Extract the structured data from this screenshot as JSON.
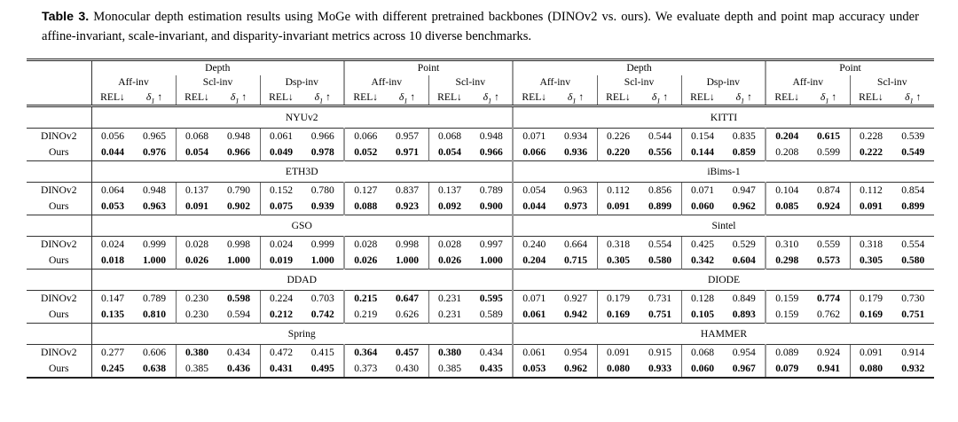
{
  "caption": {
    "label": "Table 3.",
    "text": "Monocular depth estimation results using MoGe with different pretrained backbones (DINOv2 vs. ours). We evaluate depth and point map accuracy under affine-invariant, scale-invariant, and disparity-invariant metrics across 10 diverse benchmarks."
  },
  "chart_data": {
    "type": "table",
    "title": "Monocular depth estimation results using MoGe with different pretrained backbones",
    "column_groups": [
      "Depth",
      "Point"
    ],
    "column_subgroups": [
      "Aff-inv",
      "Scl-inv",
      "Dsp-inv",
      "Aff-inv",
      "Scl-inv"
    ],
    "metrics_per_subgroup": [
      "REL↓",
      "δ1 ↑"
    ]
  },
  "table": {
    "groups": [
      "Depth",
      "Point"
    ],
    "subgroups": [
      "Aff-inv",
      "Scl-inv",
      "Dsp-inv",
      "Aff-inv",
      "Scl-inv"
    ],
    "metrics": {
      "rel": "REL",
      "rel_arrow": "↓",
      "delta": "δ",
      "delta_sub": "1",
      "delta_arrow": "↑"
    },
    "sections": [
      {
        "left": {
          "benchmark": "NYUv2",
          "rows": [
            {
              "label": "DINOv2",
              "values": [
                "0.056",
                "0.965",
                "0.068",
                "0.948",
                "0.061",
                "0.966",
                "0.066",
                "0.957",
                "0.068",
                "0.948"
              ],
              "bold": [
                0,
                0,
                0,
                0,
                0,
                0,
                0,
                0,
                0,
                0
              ]
            },
            {
              "label": "Ours",
              "values": [
                "0.044",
                "0.976",
                "0.054",
                "0.966",
                "0.049",
                "0.978",
                "0.052",
                "0.971",
                "0.054",
                "0.966"
              ],
              "bold": [
                1,
                1,
                1,
                1,
                1,
                1,
                1,
                1,
                1,
                1
              ]
            }
          ]
        },
        "right": {
          "benchmark": "KITTI",
          "rows": [
            {
              "label": "DINOv2",
              "values": [
                "0.071",
                "0.934",
                "0.226",
                "0.544",
                "0.154",
                "0.835",
                "0.204",
                "0.615",
                "0.228",
                "0.539"
              ],
              "bold": [
                0,
                0,
                0,
                0,
                0,
                0,
                1,
                1,
                0,
                0
              ]
            },
            {
              "label": "Ours",
              "values": [
                "0.066",
                "0.936",
                "0.220",
                "0.556",
                "0.144",
                "0.859",
                "0.208",
                "0.599",
                "0.222",
                "0.549"
              ],
              "bold": [
                1,
                1,
                1,
                1,
                1,
                1,
                0,
                0,
                1,
                1
              ]
            }
          ]
        }
      },
      {
        "left": {
          "benchmark": "ETH3D",
          "rows": [
            {
              "label": "DINOv2",
              "values": [
                "0.064",
                "0.948",
                "0.137",
                "0.790",
                "0.152",
                "0.780",
                "0.127",
                "0.837",
                "0.137",
                "0.789"
              ],
              "bold": [
                0,
                0,
                0,
                0,
                0,
                0,
                0,
                0,
                0,
                0
              ]
            },
            {
              "label": "Ours",
              "values": [
                "0.053",
                "0.963",
                "0.091",
                "0.902",
                "0.075",
                "0.939",
                "0.088",
                "0.923",
                "0.092",
                "0.900"
              ],
              "bold": [
                1,
                1,
                1,
                1,
                1,
                1,
                1,
                1,
                1,
                1
              ]
            }
          ]
        },
        "right": {
          "benchmark": "iBims-1",
          "rows": [
            {
              "label": "DINOv2",
              "values": [
                "0.054",
                "0.963",
                "0.112",
                "0.856",
                "0.071",
                "0.947",
                "0.104",
                "0.874",
                "0.112",
                "0.854"
              ],
              "bold": [
                0,
                0,
                0,
                0,
                0,
                0,
                0,
                0,
                0,
                0
              ]
            },
            {
              "label": "Ours",
              "values": [
                "0.044",
                "0.973",
                "0.091",
                "0.899",
                "0.060",
                "0.962",
                "0.085",
                "0.924",
                "0.091",
                "0.899"
              ],
              "bold": [
                1,
                1,
                1,
                1,
                1,
                1,
                1,
                1,
                1,
                1
              ]
            }
          ]
        }
      },
      {
        "left": {
          "benchmark": "GSO",
          "rows": [
            {
              "label": "DINOv2",
              "values": [
                "0.024",
                "0.999",
                "0.028",
                "0.998",
                "0.024",
                "0.999",
                "0.028",
                "0.998",
                "0.028",
                "0.997"
              ],
              "bold": [
                0,
                0,
                0,
                0,
                0,
                0,
                0,
                0,
                0,
                0
              ]
            },
            {
              "label": "Ours",
              "values": [
                "0.018",
                "1.000",
                "0.026",
                "1.000",
                "0.019",
                "1.000",
                "0.026",
                "1.000",
                "0.026",
                "1.000"
              ],
              "bold": [
                1,
                1,
                1,
                1,
                1,
                1,
                1,
                1,
                1,
                1
              ]
            }
          ]
        },
        "right": {
          "benchmark": "Sintel",
          "rows": [
            {
              "label": "DINOv2",
              "values": [
                "0.240",
                "0.664",
                "0.318",
                "0.554",
                "0.425",
                "0.529",
                "0.310",
                "0.559",
                "0.318",
                "0.554"
              ],
              "bold": [
                0,
                0,
                0,
                0,
                0,
                0,
                0,
                0,
                0,
                0
              ]
            },
            {
              "label": "Ours",
              "values": [
                "0.204",
                "0.715",
                "0.305",
                "0.580",
                "0.342",
                "0.604",
                "0.298",
                "0.573",
                "0.305",
                "0.580"
              ],
              "bold": [
                1,
                1,
                1,
                1,
                1,
                1,
                1,
                1,
                1,
                1
              ]
            }
          ]
        }
      },
      {
        "left": {
          "benchmark": "DDAD",
          "rows": [
            {
              "label": "DINOv2",
              "values": [
                "0.147",
                "0.789",
                "0.230",
                "0.598",
                "0.224",
                "0.703",
                "0.215",
                "0.647",
                "0.231",
                "0.595"
              ],
              "bold": [
                0,
                0,
                0,
                1,
                0,
                0,
                1,
                1,
                0,
                1
              ]
            },
            {
              "label": "Ours",
              "values": [
                "0.135",
                "0.810",
                "0.230",
                "0.594",
                "0.212",
                "0.742",
                "0.219",
                "0.626",
                "0.231",
                "0.589"
              ],
              "bold": [
                1,
                1,
                0,
                0,
                1,
                1,
                0,
                0,
                0,
                0
              ]
            }
          ]
        },
        "right": {
          "benchmark": "DIODE",
          "rows": [
            {
              "label": "DINOv2",
              "values": [
                "0.071",
                "0.927",
                "0.179",
                "0.731",
                "0.128",
                "0.849",
                "0.159",
                "0.774",
                "0.179",
                "0.730"
              ],
              "bold": [
                0,
                0,
                0,
                0,
                0,
                0,
                0,
                1,
                0,
                0
              ]
            },
            {
              "label": "Ours",
              "values": [
                "0.061",
                "0.942",
                "0.169",
                "0.751",
                "0.105",
                "0.893",
                "0.159",
                "0.762",
                "0.169",
                "0.751"
              ],
              "bold": [
                1,
                1,
                1,
                1,
                1,
                1,
                0,
                0,
                1,
                1
              ]
            }
          ]
        }
      },
      {
        "left": {
          "benchmark": "Spring",
          "rows": [
            {
              "label": "DINOv2",
              "values": [
                "0.277",
                "0.606",
                "0.380",
                "0.434",
                "0.472",
                "0.415",
                "0.364",
                "0.457",
                "0.380",
                "0.434"
              ],
              "bold": [
                0,
                0,
                1,
                0,
                0,
                0,
                1,
                1,
                1,
                0
              ]
            },
            {
              "label": "Ours",
              "values": [
                "0.245",
                "0.638",
                "0.385",
                "0.436",
                "0.431",
                "0.495",
                "0.373",
                "0.430",
                "0.385",
                "0.435"
              ],
              "bold": [
                1,
                1,
                0,
                1,
                1,
                1,
                0,
                0,
                0,
                1
              ]
            }
          ]
        },
        "right": {
          "benchmark": "HAMMER",
          "rows": [
            {
              "label": "DINOv2",
              "values": [
                "0.061",
                "0.954",
                "0.091",
                "0.915",
                "0.068",
                "0.954",
                "0.089",
                "0.924",
                "0.091",
                "0.914"
              ],
              "bold": [
                0,
                0,
                0,
                0,
                0,
                0,
                0,
                0,
                0,
                0
              ]
            },
            {
              "label": "Ours",
              "values": [
                "0.053",
                "0.962",
                "0.080",
                "0.933",
                "0.060",
                "0.967",
                "0.079",
                "0.941",
                "0.080",
                "0.932"
              ],
              "bold": [
                1,
                1,
                1,
                1,
                1,
                1,
                1,
                1,
                1,
                1
              ]
            }
          ]
        }
      }
    ]
  }
}
